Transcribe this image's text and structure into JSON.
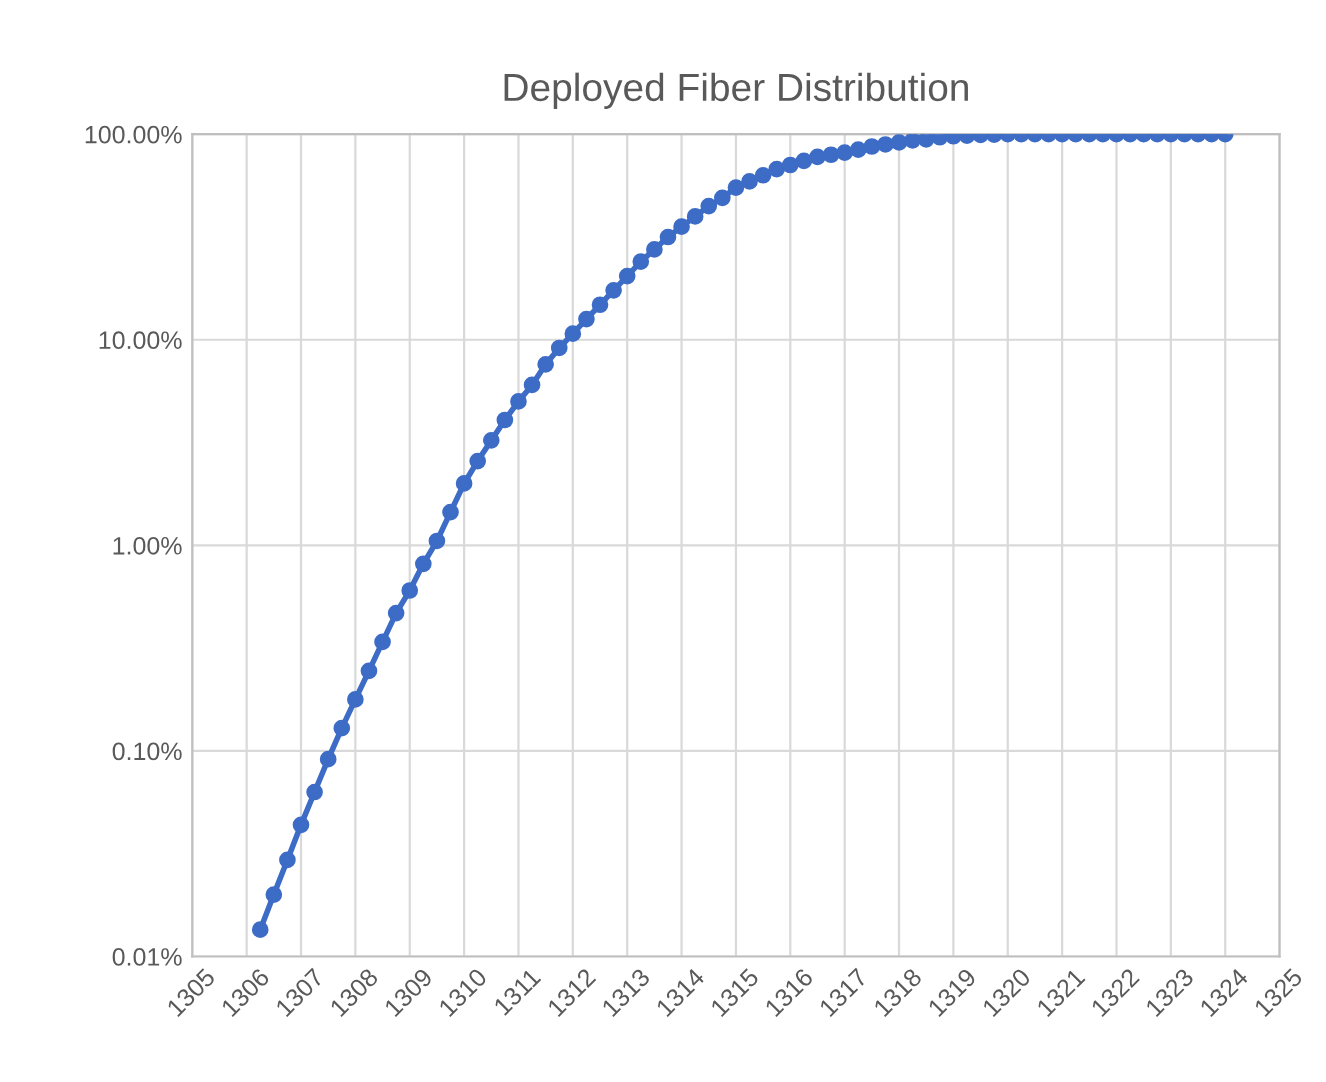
{
  "chart_data": {
    "type": "line",
    "title": "Deployed Fiber Distribution",
    "x": [
      1306.25,
      1306.5,
      1306.75,
      1307,
      1307.25,
      1307.5,
      1307.75,
      1308,
      1308.25,
      1308.5,
      1308.75,
      1309,
      1309.25,
      1309.5,
      1309.75,
      1310,
      1310.25,
      1310.5,
      1310.75,
      1311,
      1311.25,
      1311.5,
      1311.75,
      1312,
      1312.25,
      1312.5,
      1312.75,
      1313,
      1313.25,
      1313.5,
      1313.75,
      1314,
      1314.25,
      1314.5,
      1314.75,
      1315,
      1315.25,
      1315.5,
      1315.75,
      1316,
      1316.25,
      1316.5,
      1316.75,
      1317,
      1317.25,
      1317.5,
      1317.75,
      1318,
      1318.25,
      1318.5,
      1318.75,
      1319,
      1319.25,
      1319.5,
      1319.75,
      1320,
      1320.25,
      1320.5,
      1320.75,
      1321,
      1321.25,
      1321.5,
      1321.75,
      1322,
      1322.25,
      1322.5,
      1322.75,
      1323,
      1323.25,
      1323.5,
      1323.75,
      1324
    ],
    "series": [
      {
        "color": "#3d6cc6",
        "values": [
          0.0135,
          0.02,
          0.0295,
          0.0437,
          0.0631,
          0.0912,
          0.129,
          0.178,
          0.245,
          0.339,
          0.468,
          0.603,
          0.813,
          1.05,
          1.45,
          2.0,
          2.57,
          3.24,
          4.07,
          5.01,
          6.03,
          7.59,
          9.12,
          10.7,
          12.6,
          14.8,
          17.4,
          20.4,
          24.0,
          27.5,
          31.6,
          35.5,
          39.8,
          44.7,
          49.0,
          55.0,
          58.9,
          63.1,
          67.6,
          70.8,
          74.1,
          77.6,
          79.4,
          81.3,
          84.1,
          87.1,
          89.1,
          91.2,
          93.3,
          94.4,
          96.6,
          97.7,
          98.4,
          99.1,
          99.5,
          100,
          100,
          100,
          100,
          100,
          100,
          100,
          100,
          100,
          100,
          100,
          100,
          100,
          100,
          100,
          100,
          100
        ]
      }
    ],
    "log": "y",
    "xlim": [
      1305,
      1325
    ],
    "xticks": [
      1305,
      1306,
      1307,
      1308,
      1309,
      1310,
      1311,
      1312,
      1313,
      1314,
      1315,
      1316,
      1317,
      1318,
      1319,
      1320,
      1321,
      1322,
      1323,
      1324,
      1325
    ],
    "ylim": [
      0.01,
      100
    ],
    "yticks": [
      {
        "value": 0.01,
        "label": "0.01%"
      },
      {
        "value": 0.1,
        "label": "0.10%"
      },
      {
        "value": 1,
        "label": "1.00%"
      },
      {
        "value": 10,
        "label": "10.00%"
      },
      {
        "value": 100,
        "label": "100.00%"
      }
    ],
    "grid": true,
    "marker": "circle",
    "line_style": "solid"
  }
}
